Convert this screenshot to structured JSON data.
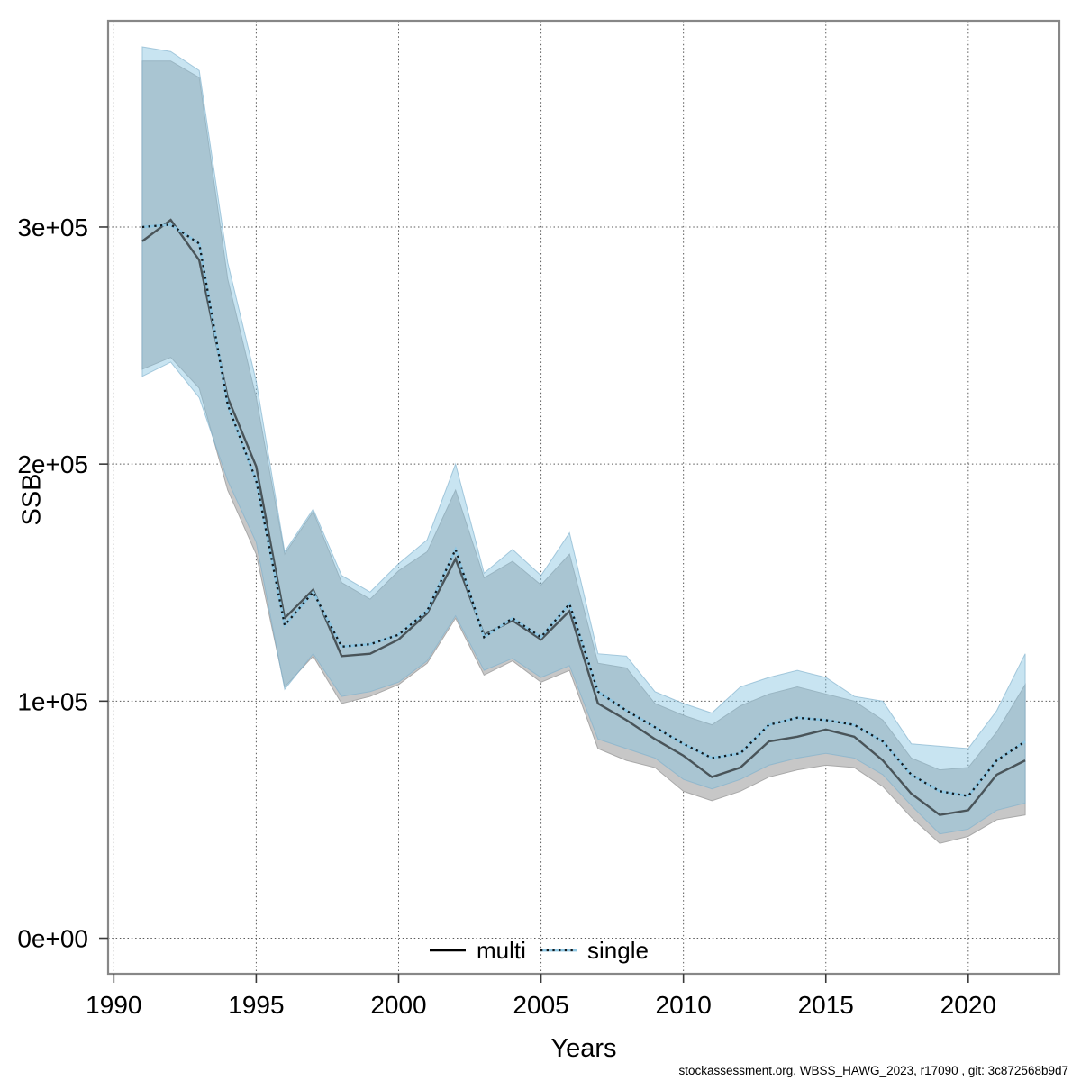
{
  "chart_data": {
    "type": "line",
    "title": "",
    "xlabel": "Years",
    "ylabel": "SSB",
    "grid": "dotted",
    "legend_position": "bottom-center-inside",
    "xlim": [
      1989.8,
      2023.2
    ],
    "ylim": [
      -15000,
      387000
    ],
    "x_ticks": [
      1990,
      1995,
      2000,
      2005,
      2010,
      2015,
      2020
    ],
    "y_ticks": [
      {
        "value": 0,
        "label": "0e+00"
      },
      {
        "value": 100000,
        "label": "1e+05"
      },
      {
        "value": 200000,
        "label": "2e+05"
      },
      {
        "value": 300000,
        "label": "3e+05"
      }
    ],
    "x": [
      1991,
      1992,
      1993,
      1994,
      1995,
      1996,
      1997,
      1998,
      1999,
      2000,
      2001,
      2002,
      2003,
      2004,
      2005,
      2006,
      2007,
      2008,
      2009,
      2010,
      2011,
      2012,
      2013,
      2014,
      2015,
      2016,
      2017,
      2018,
      2019,
      2020,
      2021,
      2022
    ],
    "series": [
      {
        "name": "multi",
        "line_style": "solid",
        "line_color": "#000000",
        "band_color": "#c7c7c7",
        "values": [
          294000,
          303000,
          286000,
          228000,
          199000,
          135000,
          147000,
          119000,
          120000,
          126000,
          137000,
          160000,
          128000,
          134000,
          126000,
          138000,
          99000,
          92000,
          84000,
          77000,
          68000,
          72000,
          83000,
          85000,
          88000,
          85000,
          75000,
          61000,
          52000,
          54000,
          69000,
          75000
        ],
        "lower": [
          240000,
          245000,
          232000,
          189000,
          162000,
          106000,
          119000,
          99000,
          102000,
          107000,
          116000,
          135000,
          111000,
          117000,
          108000,
          113000,
          80000,
          75000,
          72000,
          62000,
          58000,
          62000,
          68000,
          71000,
          73000,
          72000,
          64000,
          51000,
          40000,
          43000,
          50000,
          52000
        ],
        "upper": [
          370000,
          370000,
          363000,
          278000,
          228000,
          162000,
          180000,
          150000,
          143000,
          155000,
          163000,
          189000,
          152000,
          159000,
          149000,
          162000,
          116000,
          114000,
          99000,
          94000,
          90000,
          98000,
          103000,
          106000,
          103000,
          100000,
          92000,
          76000,
          71000,
          72000,
          87000,
          107000
        ]
      },
      {
        "name": "single",
        "line_style": "dotted",
        "line_color": "#8ec6e2",
        "band_color": "#c9e4f2",
        "values": [
          300000,
          301000,
          293000,
          225000,
          193000,
          132000,
          146000,
          123000,
          124000,
          128000,
          138000,
          164000,
          127000,
          135000,
          127000,
          141000,
          104000,
          96000,
          89000,
          82000,
          76000,
          78000,
          90000,
          93000,
          92000,
          90000,
          83000,
          69000,
          62000,
          60000,
          75000,
          83000
        ],
        "lower": [
          237000,
          243000,
          228000,
          193000,
          167000,
          105000,
          120000,
          102000,
          104000,
          108000,
          117000,
          136000,
          113000,
          118000,
          110000,
          115000,
          84000,
          80000,
          76000,
          67000,
          63000,
          67000,
          73000,
          76000,
          78000,
          76000,
          69000,
          56000,
          44000,
          46000,
          54000,
          57000
        ],
        "upper": [
          376000,
          374000,
          366000,
          285000,
          235000,
          163000,
          181000,
          153000,
          146000,
          158000,
          168000,
          200000,
          154000,
          164000,
          153000,
          171000,
          120000,
          119000,
          104000,
          99000,
          95000,
          106000,
          110000,
          113000,
          110000,
          102000,
          100000,
          82000,
          81000,
          80000,
          96000,
          120000
        ]
      }
    ],
    "legend": [
      {
        "label": "multi"
      },
      {
        "label": "single"
      }
    ]
  },
  "footer": {
    "text": "stockassessment.org, WBSS_HAWG_2023, r17090 , git: 3c872568b9d7"
  },
  "colors": {
    "plot_border": "#878787",
    "gridline": "#5a5a5a",
    "tick": "#3a3a3a",
    "grey_band": "#c7c7c7",
    "blue_band_rgba": "rgba(134,195,225,0.45)",
    "multi_line_rgba": "rgba(15,15,15,0.62)",
    "single_base": "#8ec6e2",
    "single_dash_rgba": "rgba(0,0,0,0.88)"
  }
}
